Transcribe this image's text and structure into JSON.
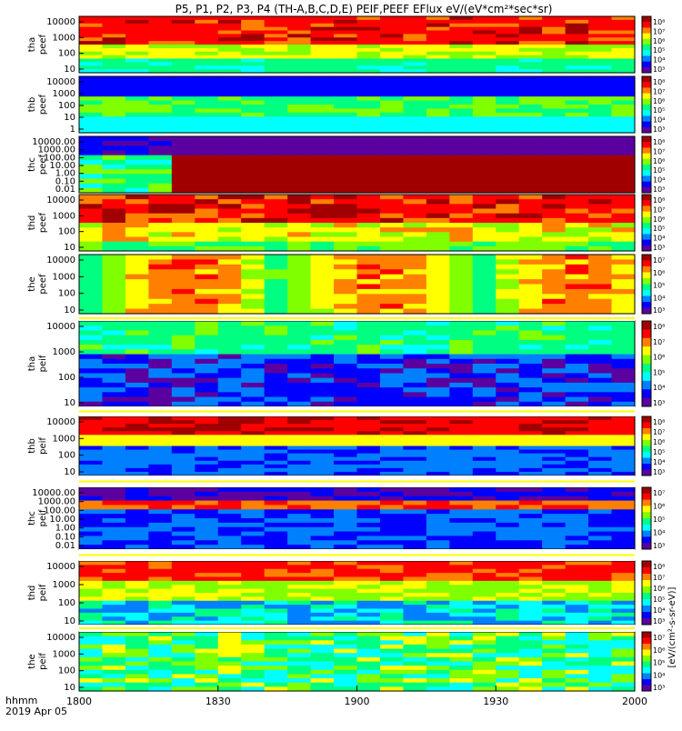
{
  "chart_data": {
    "type": "heatmap",
    "title": "P5, P1, P2, P3, P4 (TH-A,B,C,D,E) PEIF,PEEF EFlux eV/(eV*cm²*sec*sr)",
    "x_ticks": [
      "1800",
      "1830",
      "1900",
      "1930",
      "2000"
    ],
    "x_time_label_1": "hhmm",
    "x_time_label_2": "2019 Apr 05",
    "colorbar_label": "[eV/(cm²-s-sr-eV)]",
    "colorscale": [
      "#5a00a0",
      "#0000ff",
      "#0080ff",
      "#00ffff",
      "#00ff80",
      "#80ff00",
      "#ffff00",
      "#ff8000",
      "#ff0000",
      "#a00000"
    ],
    "panels": [
      {
        "label1": "tha",
        "label2": "peef",
        "yticks": [
          "10000",
          "1000",
          "100",
          "10"
        ],
        "cbar_ticks": [
          "10⁸",
          "10⁷",
          "10⁶",
          "10⁵",
          "10⁴",
          "10³"
        ],
        "rows": 16,
        "pattern": "tha_peef"
      },
      {
        "label1": "thb",
        "label2": "peef",
        "yticks": [
          "10000",
          "1000",
          "100",
          "10",
          "1"
        ],
        "cbar_ticks": [
          "10⁸",
          "10⁷",
          "10⁶",
          "10⁵",
          "10⁴",
          "10³"
        ],
        "rows": 14,
        "pattern": "thb_peef"
      },
      {
        "label1": "thc",
        "label2": "peef",
        "yticks": [
          "10000.00",
          "1000.00",
          "100.00",
          "10.00",
          "1.00",
          "0.10",
          "0.01"
        ],
        "cbar_ticks": [
          "10⁸",
          "10⁷",
          "10⁶",
          "10⁵",
          "10⁴",
          "10³"
        ],
        "rows": 12,
        "pattern": "thc_peef"
      },
      {
        "label1": "thd",
        "label2": "peef",
        "yticks": [
          "10000",
          "1000",
          "100",
          "10"
        ],
        "cbar_ticks": [
          "10⁸",
          "10⁷",
          "10⁶",
          "10⁵",
          "10⁴",
          "10³"
        ],
        "rows": 12,
        "pattern": "thd_peef"
      },
      {
        "label1": "the",
        "label2": "peef",
        "yticks": [
          "10000",
          "1000",
          "100",
          "10"
        ],
        "cbar_ticks": [
          "10⁷",
          "10⁶",
          "10⁵",
          "10⁴",
          "10³"
        ],
        "rows": 12,
        "pattern": "the_peef"
      },
      {
        "label1": "tha",
        "label2": "peif",
        "yticks": [
          "10000",
          "1000",
          "100",
          "10"
        ],
        "cbar_ticks": [
          "10⁸",
          "10⁷",
          "10⁶",
          "10⁵",
          "10⁴",
          "10³"
        ],
        "rows": 18,
        "pattern": "tha_peif"
      },
      {
        "label1": "thb",
        "label2": "peif",
        "yticks": [
          "10000",
          "1000",
          "100",
          "10"
        ],
        "cbar_ticks": [
          "10⁸",
          "10⁷",
          "10⁶",
          "10⁵",
          "10⁴",
          "10³"
        ],
        "rows": 16,
        "pattern": "thb_peif"
      },
      {
        "label1": "thc",
        "label2": "peif",
        "yticks": [
          "10000.00",
          "1000.00",
          "100.00",
          "10.00",
          "1.00",
          "0.10",
          "0.01"
        ],
        "cbar_ticks": [
          "10⁷",
          "10⁶",
          "10⁵",
          "10⁴",
          "10³"
        ],
        "rows": 14,
        "pattern": "thc_peif"
      },
      {
        "label1": "thd",
        "label2": "peif",
        "yticks": [
          "10000",
          "1000",
          "100",
          "10"
        ],
        "cbar_ticks": [
          "10⁸",
          "10⁷",
          "10⁶",
          "10⁵",
          "10⁴",
          "10³"
        ],
        "rows": 16,
        "pattern": "thd_peif"
      },
      {
        "label1": "the",
        "label2": "peif",
        "yticks": [
          "10000",
          "1000",
          "100",
          "10"
        ],
        "cbar_ticks": [
          "10⁷",
          "10⁶",
          "10⁵",
          "10⁴",
          "10³"
        ],
        "rows": 14,
        "pattern": "the_peif"
      }
    ]
  }
}
